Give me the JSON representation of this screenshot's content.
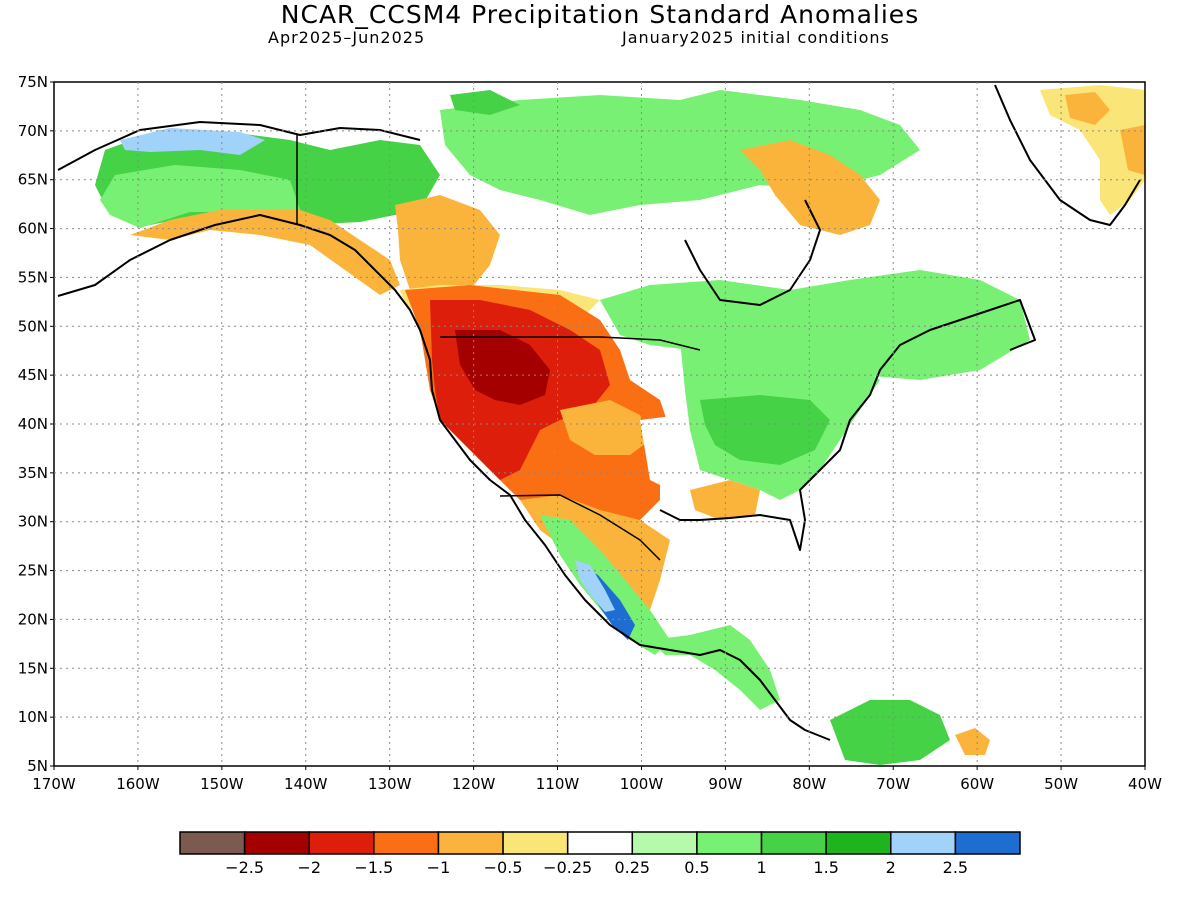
{
  "header": {
    "title": "NCAR_CCSM4 Precipitation Standard Anomalies",
    "period": "Apr2025–Jun2025",
    "init": "January2025 initial conditions"
  },
  "axes": {
    "lat_labels": [
      "75N",
      "70N",
      "65N",
      "60N",
      "55N",
      "50N",
      "45N",
      "40N",
      "35N",
      "30N",
      "25N",
      "20N",
      "15N",
      "10N",
      "5N"
    ],
    "lon_labels": [
      "170W",
      "160W",
      "150W",
      "140W",
      "130W",
      "120W",
      "110W",
      "100W",
      "90W",
      "80W",
      "70W",
      "60W",
      "50W",
      "40W"
    ],
    "lat_range": [
      5,
      75
    ],
    "lon_range": [
      -170,
      -40
    ],
    "grid": "dotted"
  },
  "colorbar": {
    "colors": [
      "#7d5a50",
      "#a50000",
      "#dc1e0a",
      "#fa6e14",
      "#fab43c",
      "#fae678",
      "#ffffff",
      "#b4faaa",
      "#78f073",
      "#46d246",
      "#1eb41e",
      "#a0d2fa",
      "#1e6ed2"
    ],
    "labels": [
      "-2.5",
      "-2",
      "-1.5",
      "-1",
      "-0.5",
      "-0.25",
      "0.25",
      "0.5",
      "1",
      "1.5",
      "2",
      "2.5"
    ]
  },
  "anomaly_regions": [
    {
      "region": "Alaska north slope",
      "value": 2.5
    },
    {
      "region": "Alaska interior",
      "value": 1.5
    },
    {
      "region": "Yukon / NW Canada",
      "value": 1.0
    },
    {
      "region": "Alaska south coast",
      "value": -0.5
    },
    {
      "region": "British Columbia interior",
      "value": -0.5
    },
    {
      "region": "Pacific Northwest / Great Basin",
      "value": -2.0
    },
    {
      "region": "Central Rockies",
      "value": -1.5
    },
    {
      "region": "Southwest US",
      "value": -1.0
    },
    {
      "region": "Southern Plains",
      "value": -1.0
    },
    {
      "region": "Ohio Valley",
      "value": 1.5
    },
    {
      "region": "Great Lakes / Northeast",
      "value": 1.0
    },
    {
      "region": "Eastern Canada",
      "value": 1.0
    },
    {
      "region": "Southeast US",
      "value": 1.0
    },
    {
      "region": "Western Mexico coast",
      "value": 2.5
    },
    {
      "region": "Northern Mexico",
      "value": -0.5
    },
    {
      "region": "Central America",
      "value": 1.0
    },
    {
      "region": "Northern South America",
      "value": 1.5
    },
    {
      "region": "Greenland",
      "value": -0.5
    }
  ]
}
